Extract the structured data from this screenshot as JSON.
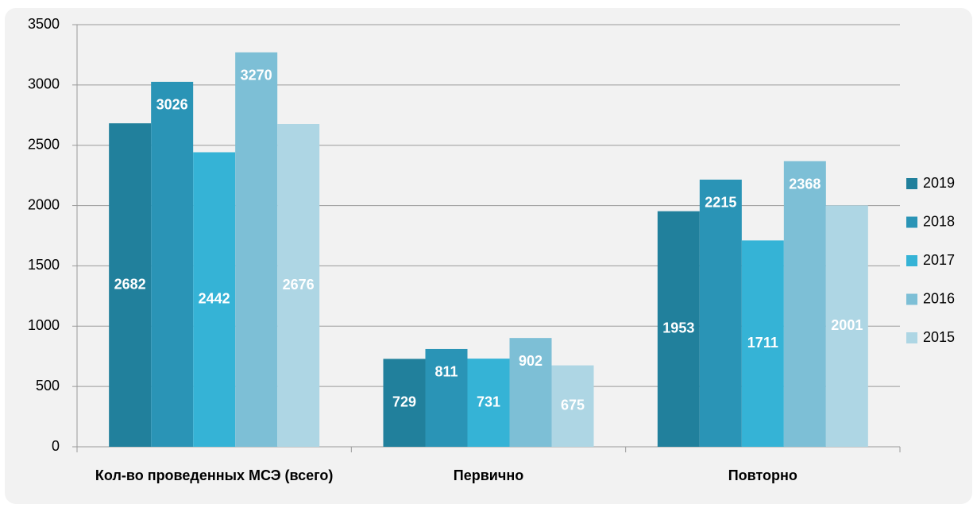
{
  "chart_data": {
    "type": "bar",
    "categories": [
      "Кол-во проведенных МСЭ (всего)",
      "Первично",
      "Повторно"
    ],
    "series": [
      {
        "name": "2019",
        "color": "#21809c",
        "values": [
          2682,
          729,
          1953
        ]
      },
      {
        "name": "2018",
        "color": "#2a94b6",
        "values": [
          3026,
          811,
          2215
        ]
      },
      {
        "name": "2017",
        "color": "#35b3d6",
        "values": [
          2442,
          731,
          1711
        ]
      },
      {
        "name": "2016",
        "color": "#7dbfd6",
        "values": [
          3270,
          902,
          2368
        ]
      },
      {
        "name": "2015",
        "color": "#aed6e4",
        "values": [
          2676,
          675,
          2001
        ]
      }
    ],
    "ylim": [
      0,
      3500
    ],
    "yticks": [
      0,
      500,
      1000,
      1500,
      2000,
      2500,
      3000,
      3500
    ],
    "grid": true,
    "legend": "right"
  }
}
